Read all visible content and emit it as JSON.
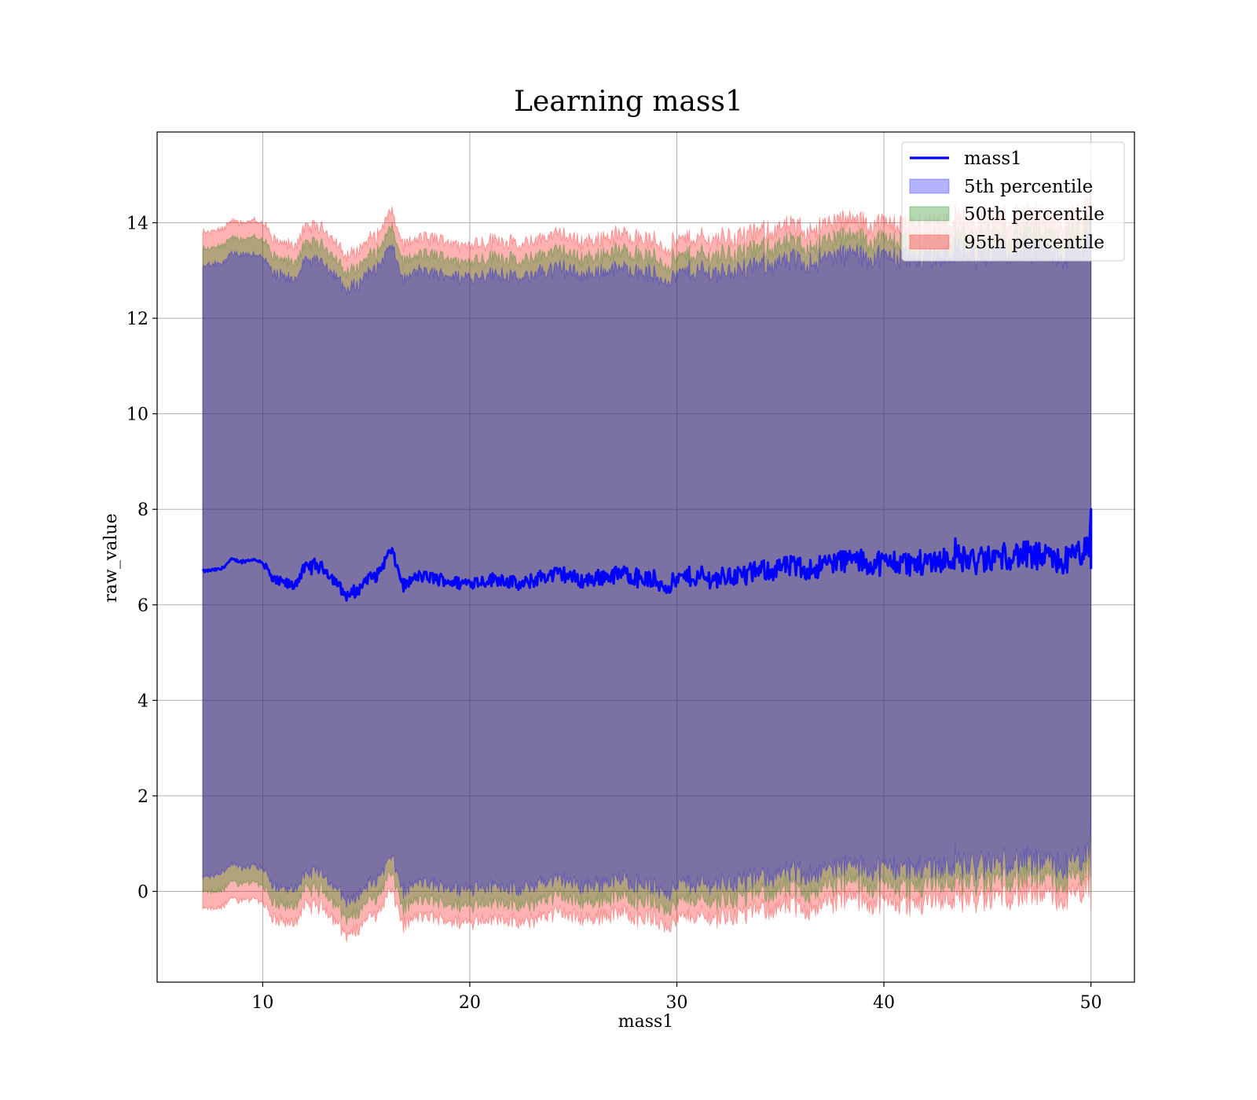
{
  "chart_data": {
    "type": "area",
    "title": "Learning mass1",
    "xlabel": "mass1",
    "ylabel": "raw_value",
    "xlim": [
      4.9,
      52.1
    ],
    "ylim": [
      -1.9,
      15.9
    ],
    "xticks": [
      10,
      20,
      30,
      40,
      50
    ],
    "yticks": [
      0,
      2,
      4,
      6,
      8,
      10,
      12,
      14
    ],
    "grid": true,
    "legend_position": "top-right",
    "x_range": [
      7.1,
      50
    ],
    "mean_line": {
      "name": "mass1",
      "color": "#0000ff",
      "anchor_points": [
        [
          7.1,
          6.7
        ],
        [
          8.0,
          6.75
        ],
        [
          8.5,
          6.95
        ],
        [
          9.0,
          6.9
        ],
        [
          9.5,
          6.95
        ],
        [
          10.0,
          6.9
        ],
        [
          10.5,
          6.5
        ],
        [
          11.0,
          6.45
        ],
        [
          11.5,
          6.4
        ],
        [
          12.0,
          6.75
        ],
        [
          12.5,
          6.85
        ],
        [
          13.0,
          6.75
        ],
        [
          13.5,
          6.5
        ],
        [
          14.0,
          6.2
        ],
        [
          14.5,
          6.25
        ],
        [
          15.0,
          6.55
        ],
        [
          15.5,
          6.6
        ],
        [
          16.2,
          7.15
        ],
        [
          16.8,
          6.4
        ],
        [
          17.5,
          6.6
        ],
        [
          18.5,
          6.55
        ],
        [
          19.5,
          6.45
        ],
        [
          20.5,
          6.5
        ],
        [
          21.5,
          6.55
        ],
        [
          22.5,
          6.4
        ],
        [
          23.5,
          6.6
        ],
        [
          24.5,
          6.65
        ],
        [
          25.5,
          6.5
        ],
        [
          26.5,
          6.6
        ],
        [
          27.5,
          6.65
        ],
        [
          28.5,
          6.55
        ],
        [
          29.5,
          6.4
        ],
        [
          30.5,
          6.6
        ],
        [
          31.5,
          6.55
        ],
        [
          32.5,
          6.6
        ],
        [
          33.5,
          6.65
        ],
        [
          34.5,
          6.75
        ],
        [
          35.5,
          6.8
        ],
        [
          36.5,
          6.75
        ],
        [
          37.5,
          6.9
        ],
        [
          38.5,
          6.95
        ],
        [
          39.5,
          6.85
        ],
        [
          40.5,
          6.9
        ],
        [
          41.5,
          6.85
        ],
        [
          42.5,
          6.95
        ],
        [
          43.5,
          7.0
        ],
        [
          44.5,
          6.9
        ],
        [
          45.5,
          7.0
        ],
        [
          46.5,
          7.05
        ],
        [
          47.5,
          7.0
        ],
        [
          48.5,
          6.9
        ],
        [
          49.0,
          6.95
        ],
        [
          49.5,
          7.1
        ],
        [
          49.9,
          7.1
        ],
        [
          50.0,
          8.0
        ],
        [
          50.0,
          6.75
        ]
      ]
    },
    "bands": [
      {
        "name": "5th percentile",
        "color": "#0000ff",
        "upper_offset": 6.4,
        "lower_offset": -6.4
      },
      {
        "name": "50th percentile",
        "color": "#008000",
        "upper_offset": 6.75,
        "lower_offset": -6.75
      },
      {
        "name": "95th percentile",
        "color": "#ff0000",
        "upper_offset": 7.1,
        "lower_offset": -7.1
      }
    ]
  }
}
